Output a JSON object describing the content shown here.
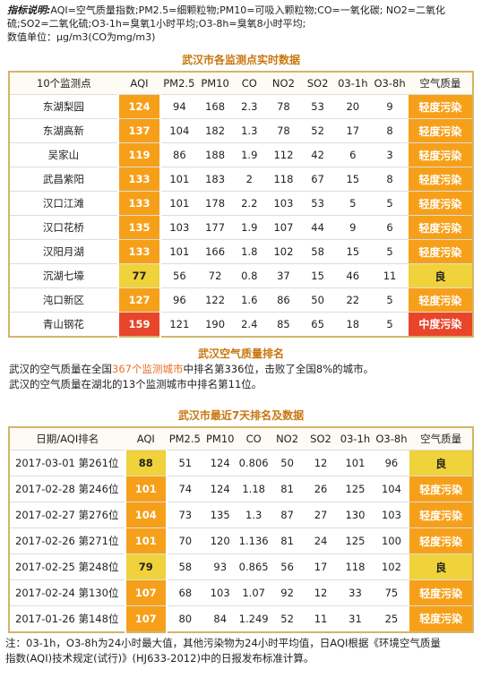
{
  "notes": {
    "label": "指标说明:",
    "lines": [
      "AQI=空气质量指数;PM2.5=细颗粒物;PM10=可吸入颗粒物;CO=一氧化碳; NO2=二氧化",
      "硫;SO2=二氧化硫;O3-1h=臭氧1小时平均;O3-8h=臭氧8小时平均;",
      "数值单位：μg/m3(CO为mg/m3)"
    ]
  },
  "table1": {
    "title": "武汉市各监测点实时数据",
    "headers": [
      "10个监测点",
      "AQI",
      "PM2.5",
      "PM10",
      "CO",
      "NO2",
      "SO2",
      "03-1h",
      "O3-8h",
      "空气质量"
    ],
    "rows": [
      [
        "东湖梨园",
        124,
        94,
        168,
        2.3,
        78,
        53,
        20,
        9,
        "轻度污染"
      ],
      [
        "东湖高新",
        137,
        104,
        182,
        1.3,
        78,
        52,
        17,
        8,
        "轻度污染"
      ],
      [
        "吴家山",
        119,
        86,
        188,
        1.9,
        112,
        42,
        6,
        3,
        "轻度污染"
      ],
      [
        "武昌紫阳",
        133,
        101,
        183,
        2,
        118,
        67,
        15,
        8,
        "轻度污染"
      ],
      [
        "汉口江滩",
        133,
        101,
        178,
        2.2,
        103,
        53,
        5,
        5,
        "轻度污染"
      ],
      [
        "汉口花桥",
        135,
        103,
        177,
        1.9,
        107,
        44,
        9,
        6,
        "轻度污染"
      ],
      [
        "汉阳月湖",
        133,
        101,
        166,
        1.8,
        102,
        58,
        15,
        5,
        "轻度污染"
      ],
      [
        "沉湖七壕",
        77,
        56,
        72,
        0.8,
        37,
        15,
        46,
        11,
        "良"
      ],
      [
        "沌口新区",
        127,
        96,
        122,
        1.6,
        86,
        50,
        22,
        5,
        "轻度污染"
      ],
      [
        "青山钢花",
        159,
        121,
        190,
        2.4,
        85,
        65,
        18,
        5,
        "中度污染"
      ]
    ]
  },
  "ranking": {
    "title": "武汉空气质量排名",
    "line1": [
      "武汉的空气质量在全国",
      "367个监测城市",
      "中排名第336位，击败了全国8%的城市。"
    ],
    "line2": "武汉的空气质量在湖北的13个监测城市中排名第11位。"
  },
  "table2": {
    "title": "武汉市最近7天排名及数据",
    "headers": [
      "日期/AQI排名",
      "AQI",
      "PM2.5",
      "PM10",
      "CO",
      "NO2",
      "SO2",
      "03-1h",
      "O3-8h",
      "空气质量"
    ],
    "rows": [
      [
        "2017-03-01 第261位",
        88,
        51,
        124,
        0.806,
        50,
        12,
        101,
        96,
        "良"
      ],
      [
        "2017-02-28 第246位",
        101,
        74,
        124,
        1.18,
        81,
        26,
        125,
        104,
        "轻度污染"
      ],
      [
        "2017-02-27 第276位",
        104,
        73,
        135,
        1.3,
        87,
        27,
        130,
        103,
        "轻度污染"
      ],
      [
        "2017-02-26 第271位",
        101,
        70,
        120,
        1.136,
        81,
        24,
        125,
        100,
        "轻度污染"
      ],
      [
        "2017-02-25 第248位",
        79,
        58,
        93,
        0.865,
        56,
        17,
        118,
        102,
        "良"
      ],
      [
        "2017-02-24 第130位",
        107,
        68,
        103,
        1.07,
        92,
        12,
        33,
        75,
        "轻度污染"
      ],
      [
        "2017-01-26 第148位",
        107,
        80,
        84,
        1.249,
        52,
        11,
        31,
        25,
        "轻度污染"
      ]
    ]
  },
  "footnote": {
    "lines": [
      "注：03-1h，O3-8h为24小时最大值，其他污染物为24小时平均值，日AQI根据《环境空气质量",
      "指数(AQI)技术规定(试行)》(HJ633-2012)中的日报发布标准计算。"
    ]
  }
}
